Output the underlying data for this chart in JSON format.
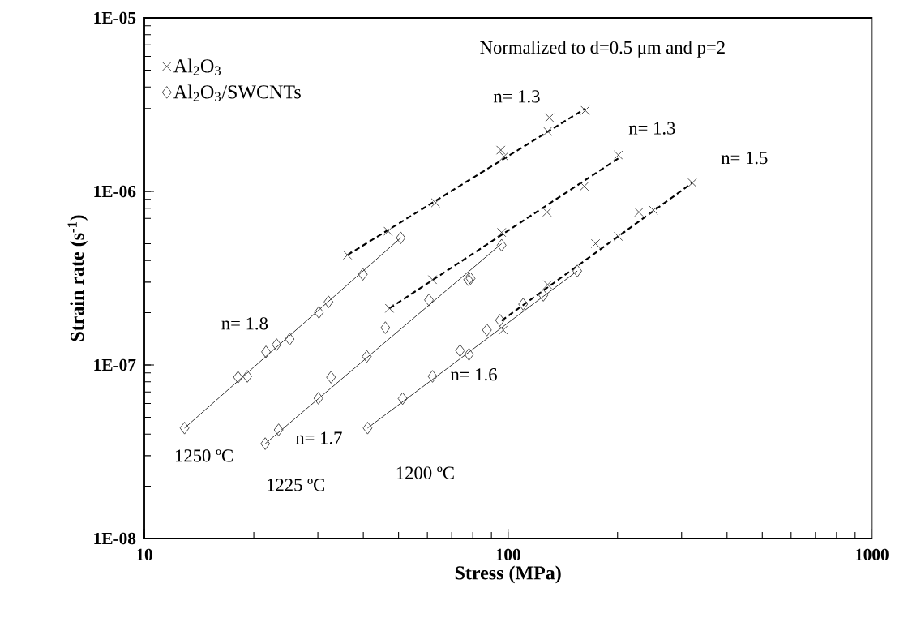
{
  "chart_data": {
    "type": "scatter",
    "xlabel": "Stress (MPa)",
    "ylabel": "Strain rate (s$^{-1}$)",
    "log": "xy",
    "xlim": [
      10,
      1000
    ],
    "ylim": [
      1e-08,
      1e-05
    ],
    "xticks": [
      10,
      100,
      1000
    ],
    "yticks": [
      {
        "value": 1e-08,
        "label": "1E-08"
      },
      {
        "value": 1e-07,
        "label": "1E-07"
      },
      {
        "value": 1e-06,
        "label": "1E-06"
      },
      {
        "value": 1e-05,
        "label": "1E-05"
      }
    ],
    "legend": "top left",
    "grid": false,
    "series": [
      {
        "name": "Al$_{2}$O$_{3}$",
        "marker": "cross",
        "color": "#404040",
        "x": [
          36.2,
          46.8,
          63.2,
          95.5,
          97.5,
          130,
          128.5,
          163,
          47.2,
          62,
          96,
          128,
          162,
          201,
          97,
          128.5,
          174,
          201,
          229,
          251,
          321
        ],
        "values": [
          4.3e-07,
          5.9e-07,
          8.6e-07,
          1.73e-06,
          1.59e-06,
          2.66e-06,
          2.22e-06,
          2.93e-06,
          2.12e-07,
          3.1e-07,
          5.8e-07,
          7.6e-07,
          1.07e-06,
          1.62e-06,
          1.59e-07,
          2.9e-07,
          5e-07,
          5.5e-07,
          7.6e-07,
          7.8e-07,
          1.12e-06
        ]
      },
      {
        "name": "Al$_{2}$O$_{3}$/SWCNTs",
        "marker": "diamond",
        "color": "#404040",
        "x": [
          12.9,
          18.1,
          19.2,
          21.6,
          23.1,
          25.1,
          30.2,
          32.1,
          39.9,
          50.7,
          21.5,
          23.4,
          30.1,
          32.6,
          40.9,
          46.0,
          60.6,
          77.7,
          78.9,
          96,
          41.1,
          51.3,
          62.0,
          73.8,
          78.1,
          87.5,
          95,
          110,
          125,
          155
        ],
        "values": [
          4.33e-08,
          8.5e-08,
          8.6e-08,
          1.19e-07,
          1.31e-07,
          1.41e-07,
          2.01e-07,
          2.31e-07,
          3.33e-07,
          5.4e-07,
          3.52e-08,
          4.23e-08,
          6.43e-08,
          8.5e-08,
          1.12e-07,
          1.64e-07,
          2.37e-07,
          3.1e-07,
          3.15e-07,
          4.9e-07,
          4.33e-08,
          6.4e-08,
          8.6e-08,
          1.21e-07,
          1.15e-07,
          1.59e-07,
          1.81e-07,
          2.24e-07,
          2.52e-07,
          3.48e-07
        ]
      },
      {
        "type": "line",
        "line_style": "dashed",
        "color": "#000000",
        "x": [
          36.2,
          163
        ],
        "values": [
          4.3e-07,
          3e-06
        ]
      },
      {
        "type": "line",
        "line_style": "dashed",
        "color": "#000000",
        "x": [
          47.2,
          201
        ],
        "values": [
          2.12e-07,
          1.55e-06
        ]
      },
      {
        "type": "line",
        "line_style": "dashed",
        "color": "#000000",
        "x": [
          96,
          321
        ],
        "values": [
          1.8e-07,
          1.12e-06
        ]
      },
      {
        "type": "line",
        "line_style": "solid",
        "color": "#000000",
        "x": [
          12.9,
          50.7
        ],
        "values": [
          4.33e-08,
          5.4e-07
        ]
      },
      {
        "type": "line",
        "line_style": "solid",
        "color": "#000000",
        "x": [
          21.5,
          96
        ],
        "values": [
          3.52e-08,
          5e-07
        ]
      },
      {
        "type": "line",
        "line_style": "solid",
        "color": "#000000",
        "x": [
          41.1,
          155
        ],
        "values": [
          4.33e-08,
          3.48e-07
        ]
      }
    ],
    "annotations": [
      "Normalized to d=0.5 μm and p=2",
      "n= 1.3",
      "n= 1.3",
      "n= 1.5",
      "n= 1.8",
      "n= 1.7",
      "n= 1.6",
      "1250 ºC",
      "1225 ºC",
      "1200 ºC"
    ]
  }
}
